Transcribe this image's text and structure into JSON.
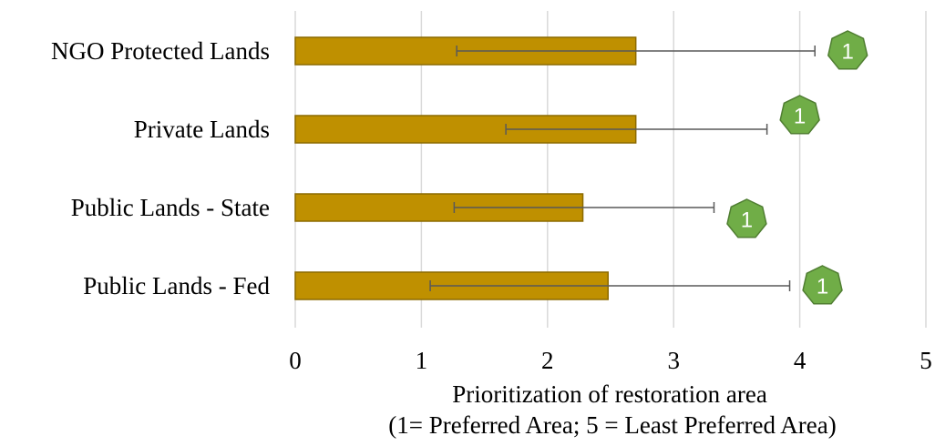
{
  "chart_data": {
    "type": "bar",
    "orientation": "horizontal",
    "categories": [
      "NGO Protected Lands",
      "Private Lands",
      "Public Lands - State",
      "Public Lands - Fed"
    ],
    "values": [
      2.7,
      2.7,
      2.28,
      2.48
    ],
    "error_low": [
      1.28,
      1.67,
      1.26,
      1.07
    ],
    "error_high": [
      4.12,
      3.74,
      3.32,
      3.92
    ],
    "badges": [
      "1",
      "1",
      "1",
      "1"
    ],
    "xlabel": "Prioritization of restoration area",
    "xlabel2": "(1= Preferred Area; 5 = Least Preferred Area)",
    "xlim": [
      0,
      5
    ],
    "xticks": [
      "0",
      "1",
      "2",
      "3",
      "4",
      "5"
    ],
    "grid": true,
    "colors": {
      "bar_fill": "#BF9000",
      "bar_stroke": "#8C6A00",
      "error_bar": "#595959",
      "grid": "#D9D9D9",
      "badge_fill": "#70AD47",
      "badge_stroke": "#507E32",
      "badge_text": "#FFFFFF"
    }
  }
}
